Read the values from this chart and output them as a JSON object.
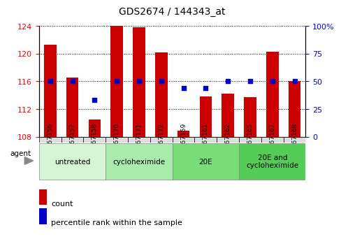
{
  "title": "GDS2674 / 144343_at",
  "samples": [
    "GSM67156",
    "GSM67157",
    "GSM67158",
    "GSM67170",
    "GSM67171",
    "GSM67172",
    "GSM67159",
    "GSM67161",
    "GSM67162",
    "GSM67165",
    "GSM67167",
    "GSM67168"
  ],
  "counts": [
    121.3,
    116.5,
    110.5,
    124.0,
    123.8,
    120.2,
    108.9,
    113.8,
    114.2,
    113.7,
    120.3,
    116.0
  ],
  "percentiles": [
    50,
    50,
    33,
    50,
    50,
    50,
    44,
    44,
    50,
    50,
    50,
    50
  ],
  "ylim_left": [
    108,
    124
  ],
  "ylim_right": [
    0,
    100
  ],
  "yticks_left": [
    108,
    112,
    116,
    120,
    124
  ],
  "yticks_right": [
    0,
    25,
    50,
    75,
    100
  ],
  "bar_color": "#cc0000",
  "dot_color": "#0000cc",
  "groups": [
    {
      "label": "untreated",
      "start": 0,
      "end": 3,
      "color": "#d5f5d5"
    },
    {
      "label": "cycloheximide",
      "start": 3,
      "end": 6,
      "color": "#aaeaaa"
    },
    {
      "label": "20E",
      "start": 6,
      "end": 9,
      "color": "#77dd77"
    },
    {
      "label": "20E and\ncycloheximide",
      "start": 9,
      "end": 12,
      "color": "#55cc55"
    }
  ],
  "legend_count_label": "count",
  "legend_pct_label": "percentile rank within the sample"
}
